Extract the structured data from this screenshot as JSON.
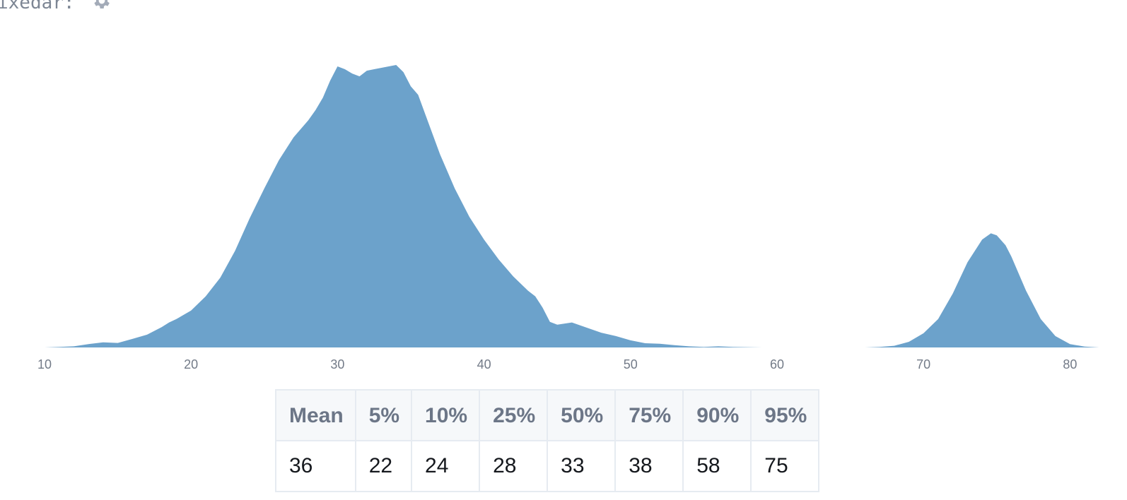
{
  "header": {
    "label": "ixedar:",
    "icon": "gear-icon"
  },
  "chart_data": {
    "type": "area",
    "color": "#6ca2cb",
    "xlim": [
      9,
      82
    ],
    "xticks": [
      10,
      20,
      30,
      40,
      50,
      60,
      70,
      80
    ],
    "axis_break": [
      59,
      64
    ],
    "segments": [
      {
        "points": [
          [
            9,
            0
          ],
          [
            10,
            0
          ],
          [
            11,
            0.002
          ],
          [
            12,
            0.004
          ],
          [
            13,
            0.012
          ],
          [
            14,
            0.018
          ],
          [
            15,
            0.016
          ],
          [
            16,
            0.03
          ],
          [
            17,
            0.045
          ],
          [
            18,
            0.072
          ],
          [
            18.5,
            0.088
          ],
          [
            19,
            0.1
          ],
          [
            20,
            0.13
          ],
          [
            21,
            0.18
          ],
          [
            22,
            0.246
          ],
          [
            23,
            0.34
          ],
          [
            24,
            0.455
          ],
          [
            25,
            0.56
          ],
          [
            26,
            0.66
          ],
          [
            27,
            0.74
          ],
          [
            28,
            0.8
          ],
          [
            28.5,
            0.836
          ],
          [
            29,
            0.88
          ],
          [
            29.5,
            0.94
          ],
          [
            30,
            0.99
          ],
          [
            30.5,
            0.98
          ],
          [
            31,
            0.965
          ],
          [
            31.5,
            0.955
          ],
          [
            32,
            0.975
          ],
          [
            32.5,
            0.98
          ],
          [
            33,
            0.985
          ],
          [
            33.5,
            0.99
          ],
          [
            34,
            0.995
          ],
          [
            34.5,
            0.97
          ],
          [
            35,
            0.92
          ],
          [
            35.5,
            0.89
          ],
          [
            36,
            0.82
          ],
          [
            37,
            0.68
          ],
          [
            38,
            0.56
          ],
          [
            39,
            0.46
          ],
          [
            40,
            0.38
          ],
          [
            41,
            0.31
          ],
          [
            42,
            0.25
          ],
          [
            43,
            0.2
          ],
          [
            43.5,
            0.18
          ],
          [
            44,
            0.14
          ],
          [
            44.5,
            0.09
          ],
          [
            45,
            0.08
          ],
          [
            46,
            0.088
          ],
          [
            47,
            0.07
          ],
          [
            48,
            0.052
          ],
          [
            49,
            0.04
          ],
          [
            50,
            0.025
          ],
          [
            51,
            0.015
          ],
          [
            52,
            0.013
          ],
          [
            53,
            0.008
          ],
          [
            54,
            0.004
          ],
          [
            55,
            0.002
          ],
          [
            56,
            0.004
          ],
          [
            57,
            0.002
          ],
          [
            59,
            0
          ]
        ]
      },
      {
        "points": [
          [
            64,
            0
          ],
          [
            66,
            0
          ],
          [
            67,
            0.002
          ],
          [
            68,
            0.006
          ],
          [
            69,
            0.02
          ],
          [
            70,
            0.05
          ],
          [
            71,
            0.1
          ],
          [
            72,
            0.19
          ],
          [
            73,
            0.3
          ],
          [
            74,
            0.38
          ],
          [
            74.6,
            0.402
          ],
          [
            75,
            0.395
          ],
          [
            75.6,
            0.36
          ],
          [
            76,
            0.32
          ],
          [
            77,
            0.2
          ],
          [
            78,
            0.1
          ],
          [
            79,
            0.04
          ],
          [
            80,
            0.012
          ],
          [
            81,
            0.003
          ],
          [
            82,
            0
          ]
        ]
      }
    ],
    "title": "",
    "xlabel": "",
    "ylabel": ""
  },
  "table": {
    "headers": [
      "Mean",
      "5%",
      "10%",
      "25%",
      "50%",
      "75%",
      "90%",
      "95%"
    ],
    "values": [
      "36",
      "22",
      "24",
      "28",
      "33",
      "38",
      "58",
      "75"
    ]
  }
}
